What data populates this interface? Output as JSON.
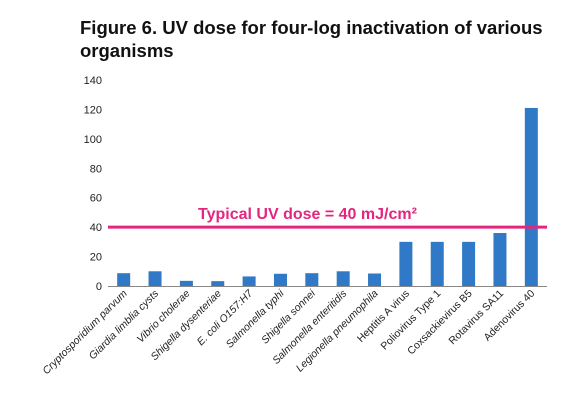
{
  "title": "Figure 6. UV dose for four-log inactivation of various organisms",
  "chart_data": {
    "type": "bar",
    "title": "Figure 6. UV dose for four-log inactivation of various organisms",
    "xlabel": "",
    "ylabel": "",
    "ylim": [
      0,
      140
    ],
    "yticks": [
      0,
      20,
      40,
      60,
      80,
      100,
      120,
      140
    ],
    "grid": false,
    "categories": [
      "Cryptosporidium parvum",
      "Giardia limblia cysts",
      "Vibrio cholerae",
      "Shigella dysenteriae",
      "E. coli O157:H7",
      "Salmonella typhi",
      "Shigella sonnei",
      "Salmonella enteritidis",
      "Legionella pneumophila",
      "Heptitis A virus",
      "Poliovirus Type 1",
      "Coxsackievirus B5",
      "Rotavirus SA11",
      "Adenovirus 40"
    ],
    "italic": [
      true,
      true,
      true,
      true,
      true,
      true,
      true,
      true,
      true,
      false,
      false,
      false,
      false,
      false
    ],
    "values": [
      8.7,
      10,
      3.5,
      3.3,
      6.5,
      8.3,
      8.7,
      10,
      8.5,
      30,
      30,
      30,
      36,
      121
    ],
    "bar_color": "#2f79c6",
    "reference_line": {
      "value": 40,
      "label": "Typical UV dose = 40 mJ/cm²",
      "color": "#e3267f"
    }
  }
}
